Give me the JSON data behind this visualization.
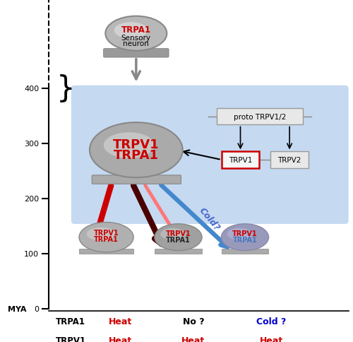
{
  "bg_color": "#ffffff",
  "blue_box_color": "#c5d9f1",
  "axis_color": "#000000",
  "y_tick_positions": {
    "0": 0.02,
    "100": 0.195,
    "200": 0.37,
    "300": 0.545,
    "400": 0.72
  },
  "mya_label": "MYA",
  "table_rows": [
    {
      "label": "TRPA1",
      "col1": "Heat",
      "col1_color": "#cc0000",
      "col2": "No ?",
      "col2_color": "#000000",
      "col3": "Cold ?",
      "col3_color": "#0000cc"
    },
    {
      "label": "TRPV1",
      "col1": "Heat",
      "col1_color": "#cc0000",
      "col2": "Heat",
      "col2_color": "#cc0000",
      "col3": "Heat",
      "col3_color": "#cc0000"
    }
  ]
}
